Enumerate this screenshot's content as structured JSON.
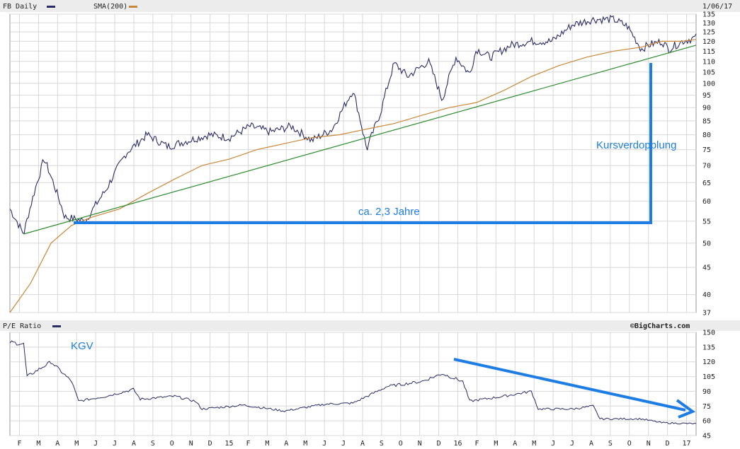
{
  "header": {
    "symbol_label": "FB Daily",
    "sma_label": "SMA(200)",
    "date": "1/06/17",
    "symbol_color": "#2b2b66",
    "sma_color": "#c8883a"
  },
  "lower_header": {
    "pe_label": "P/E Ratio",
    "source": "©BigCharts.com",
    "pe_color": "#2b2b66"
  },
  "annotations": {
    "doubling": "Kursverdopplung",
    "years": "ca. 2,3 Jahre",
    "kgv": "KGV",
    "color": "#1e7de4"
  },
  "chart_data": [
    {
      "type": "line",
      "scale": "log",
      "ylim": [
        37,
        135
      ],
      "yticks": [
        135,
        130,
        125,
        120,
        115,
        110,
        105,
        100,
        95,
        90,
        85,
        80,
        75,
        70,
        65,
        60,
        55,
        50,
        45,
        40,
        37
      ],
      "x_ticks": [
        "F",
        "M",
        "A",
        "M",
        "J",
        "J",
        "A",
        "S",
        "O",
        "N",
        "D",
        "15",
        "F",
        "M",
        "A",
        "M",
        "J",
        "J",
        "A",
        "S",
        "O",
        "N",
        "D",
        "16",
        "F",
        "M",
        "A",
        "M",
        "J",
        "J",
        "A",
        "S",
        "O",
        "N",
        "D",
        "17"
      ],
      "series": [
        {
          "name": "FB Daily",
          "x": [
            0,
            0.02,
            0.05,
            0.08,
            0.11,
            0.14,
            0.17,
            0.2,
            0.23,
            0.26,
            0.29,
            0.32,
            0.35,
            0.38,
            0.41,
            0.44,
            0.47,
            0.5,
            0.52,
            0.54,
            0.56,
            0.58,
            0.61,
            0.63,
            0.65,
            0.67,
            0.68,
            0.7,
            0.73,
            0.76,
            0.79,
            0.82,
            0.85,
            0.88,
            0.9,
            0.92,
            0.93,
            0.95,
            0.96,
            0.98,
            1.0
          ],
          "values": [
            58,
            52,
            72,
            56,
            55,
            63,
            74,
            80,
            76,
            78,
            80,
            79,
            83,
            81,
            83,
            78,
            82,
            97,
            75,
            88,
            109,
            103,
            110,
            93,
            112,
            104,
            116,
            112,
            118,
            120,
            120,
            129,
            132,
            132,
            128,
            116,
            118,
            120,
            116,
            120,
            122
          ]
        },
        {
          "name": "SMA(200)",
          "x": [
            0,
            0.03,
            0.06,
            0.09,
            0.12,
            0.16,
            0.2,
            0.24,
            0.28,
            0.32,
            0.36,
            0.4,
            0.44,
            0.48,
            0.52,
            0.56,
            0.6,
            0.64,
            0.68,
            0.72,
            0.76,
            0.8,
            0.84,
            0.88,
            0.92,
            0.95,
            0.98,
            1.0
          ],
          "values": [
            37,
            42,
            50,
            54,
            56,
            58,
            62,
            66,
            70,
            72,
            75,
            77,
            79,
            80,
            82,
            84,
            87,
            90,
            92,
            97,
            103,
            108,
            112,
            115,
            117,
            120,
            120,
            121
          ]
        },
        {
          "name": "Trend",
          "x": [
            0.02,
            1.0
          ],
          "values": [
            52,
            118
          ]
        }
      ]
    },
    {
      "type": "line",
      "ylim": [
        45,
        150
      ],
      "yticks": [
        150,
        135,
        120,
        105,
        90,
        75,
        60,
        45
      ],
      "series": [
        {
          "name": "P/E Ratio",
          "x": [
            0,
            0.02,
            0.025,
            0.06,
            0.09,
            0.1,
            0.14,
            0.18,
            0.19,
            0.24,
            0.27,
            0.28,
            0.34,
            0.4,
            0.46,
            0.5,
            0.55,
            0.6,
            0.63,
            0.66,
            0.67,
            0.72,
            0.76,
            0.77,
            0.82,
            0.85,
            0.86,
            0.92,
            0.95,
            1.0
          ],
          "values": [
            140,
            138,
            105,
            120,
            100,
            80,
            85,
            92,
            82,
            85,
            80,
            72,
            76,
            70,
            77,
            78,
            95,
            100,
            108,
            100,
            80,
            85,
            90,
            72,
            72,
            75,
            62,
            62,
            58,
            57
          ]
        }
      ]
    }
  ]
}
